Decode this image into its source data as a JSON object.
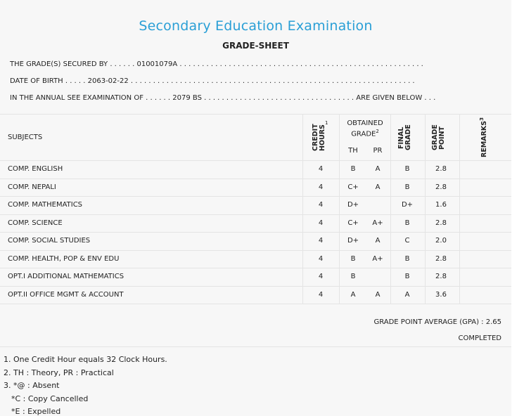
{
  "header": {
    "title": "Secondary Education Examination",
    "subtitle": "GRADE-SHEET"
  },
  "info": {
    "line1": "THE GRADE(S) SECURED BY . . . . . . 01001079A . . . . . . . . . . . . . . . . . . . . . . . . . . . . . . . . . . . . . . . . . . . . . . . . . . . . . . .",
    "line2": "DATE OF BIRTH . . . . . 2063-02-22 . . . . . . . . . . . . . . . . . . . . . . . . . . . . . . . . . . . . . . . . . . . . . . . . . . . . . . . . . . . . . . . .",
    "line3": "IN THE ANNUAL SEE EXAMINATION OF . . . . . . 2079 BS . . . . . . . . . . . . . . . . . . . . . . . . . . . . . . . . . . ARE GIVEN BELOW . . ."
  },
  "table": {
    "col_subjects": "SUBJECTS",
    "col_credit": "CREDIT HOURS",
    "col_credit_sup": "1",
    "col_obtained": "OBTAINED GRADE",
    "col_obtained_sup": "2",
    "col_th": "TH",
    "col_pr": "PR",
    "col_final": "FINAL GRADE",
    "col_gp": "GRADE POINT",
    "col_remarks": "REMARKS",
    "col_remarks_sup": "3",
    "rows": [
      {
        "subject": "COMP. ENGLISH",
        "credit": "4",
        "th": "B",
        "pr": "A",
        "final": "B",
        "gp": "2.8"
      },
      {
        "subject": "COMP. NEPALI",
        "credit": "4",
        "th": "C+",
        "pr": "A",
        "final": "B",
        "gp": "2.8"
      },
      {
        "subject": "COMP. MATHEMATICS",
        "credit": "4",
        "th": "D+",
        "pr": "",
        "final": "D+",
        "gp": "1.6"
      },
      {
        "subject": "COMP. SCIENCE",
        "credit": "4",
        "th": "C+",
        "pr": "A+",
        "final": "B",
        "gp": "2.8"
      },
      {
        "subject": "COMP. SOCIAL STUDIES",
        "credit": "4",
        "th": "D+",
        "pr": "A",
        "final": "C",
        "gp": "2.0"
      },
      {
        "subject": "COMP. HEALTH, POP & ENV EDU",
        "credit": "4",
        "th": "B",
        "pr": "A+",
        "final": "B",
        "gp": "2.8"
      },
      {
        "subject": "OPT.I ADDITIONAL MATHEMATICS",
        "credit": "4",
        "th": "B",
        "pr": "",
        "final": "B",
        "gp": "2.8"
      },
      {
        "subject": "OPT.II OFFICE MGMT & ACCOUNT",
        "credit": "4",
        "th": "A",
        "pr": "A",
        "final": "A",
        "gp": "3.6"
      }
    ]
  },
  "summary": {
    "gpa": "GRADE POINT AVERAGE (GPA) : 2.65",
    "status": "COMPLETED"
  },
  "notes": {
    "n1": "1. One Credit Hour equals 32 Clock Hours.",
    "n2": "2. TH : Theory, PR : Practical",
    "n3": "3. *@ : Absent",
    "n4": "*C : Copy Cancelled",
    "n5": "*E : Expelled"
  }
}
